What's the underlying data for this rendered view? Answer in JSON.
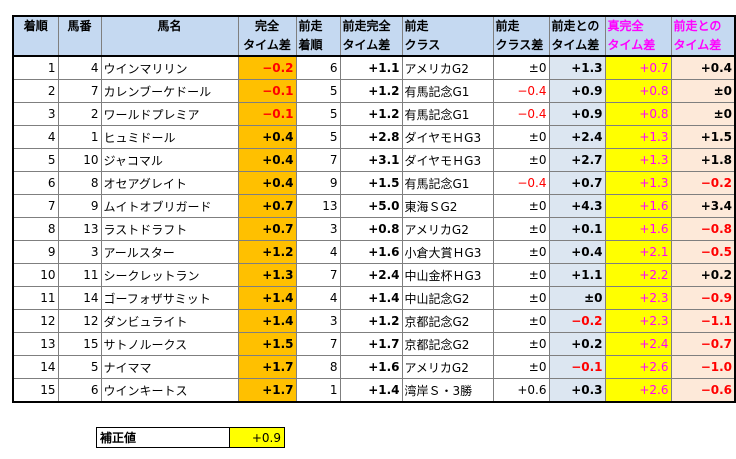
{
  "headers": {
    "rank": [
      "着順",
      ""
    ],
    "num": [
      "馬番",
      ""
    ],
    "name": [
      "馬名",
      ""
    ],
    "diff": [
      "完全",
      "タイム差"
    ],
    "prev_rank": [
      "前走",
      "着順"
    ],
    "prev_diff": [
      "前走完全",
      "タイム差"
    ],
    "prev_class": [
      "前走",
      "クラス"
    ],
    "class_diff": [
      "前走",
      "クラス差"
    ],
    "prev_time": [
      "前走との",
      "タイム差"
    ],
    "true_diff": [
      "真完全",
      "タイム差"
    ],
    "true_prev": [
      "前走との",
      "タイム差"
    ]
  },
  "rows": [
    {
      "rank": "1",
      "num": "4",
      "name": "ウインマリリン",
      "diff": "−0.2",
      "prev_rank": "6",
      "prev_diff": "+1.1",
      "prev_class": "アメリカG2",
      "class_diff": "±0",
      "prev_time": "+1.3",
      "true_diff": "+0.7",
      "true_prev": "+0.4"
    },
    {
      "rank": "2",
      "num": "7",
      "name": "カレンブーケドール",
      "diff": "−0.1",
      "prev_rank": "5",
      "prev_diff": "+1.2",
      "prev_class": "有馬記念G1",
      "class_diff": "−0.4",
      "prev_time": "+0.9",
      "true_diff": "+0.8",
      "true_prev": "±0"
    },
    {
      "rank": "3",
      "num": "2",
      "name": "ワールドプレミア",
      "diff": "−0.1",
      "prev_rank": "5",
      "prev_diff": "+1.2",
      "prev_class": "有馬記念G1",
      "class_diff": "−0.4",
      "prev_time": "+0.9",
      "true_diff": "+0.8",
      "true_prev": "±0"
    },
    {
      "rank": "4",
      "num": "1",
      "name": "ヒュミドール",
      "diff": "+0.4",
      "prev_rank": "5",
      "prev_diff": "+2.8",
      "prev_class": "ダイヤモＨG3",
      "class_diff": "±0",
      "prev_time": "+2.4",
      "true_diff": "+1.3",
      "true_prev": "+1.5"
    },
    {
      "rank": "5",
      "num": "10",
      "name": "ジャコマル",
      "diff": "+0.4",
      "prev_rank": "7",
      "prev_diff": "+3.1",
      "prev_class": "ダイヤモＨG3",
      "class_diff": "±0",
      "prev_time": "+2.7",
      "true_diff": "+1.3",
      "true_prev": "+1.8"
    },
    {
      "rank": "6",
      "num": "8",
      "name": "オセアグレイト",
      "diff": "+0.4",
      "prev_rank": "9",
      "prev_diff": "+1.5",
      "prev_class": "有馬記念G1",
      "class_diff": "−0.4",
      "prev_time": "+0.7",
      "true_diff": "+1.3",
      "true_prev": "−0.2"
    },
    {
      "rank": "7",
      "num": "9",
      "name": "ムイトオブリガード",
      "diff": "+0.7",
      "prev_rank": "13",
      "prev_diff": "+5.0",
      "prev_class": "東海ＳG2",
      "class_diff": "±0",
      "prev_time": "+4.3",
      "true_diff": "+1.6",
      "true_prev": "+3.4"
    },
    {
      "rank": "8",
      "num": "13",
      "name": "ラストドラフト",
      "diff": "+0.7",
      "prev_rank": "3",
      "prev_diff": "+0.8",
      "prev_class": "アメリカG2",
      "class_diff": "±0",
      "prev_time": "+0.1",
      "true_diff": "+1.6",
      "true_prev": "−0.8"
    },
    {
      "rank": "9",
      "num": "3",
      "name": "アールスター",
      "diff": "+1.2",
      "prev_rank": "4",
      "prev_diff": "+1.6",
      "prev_class": "小倉大賞ＨG3",
      "class_diff": "±0",
      "prev_time": "+0.4",
      "true_diff": "+2.1",
      "true_prev": "−0.5"
    },
    {
      "rank": "10",
      "num": "11",
      "name": "シークレットラン",
      "diff": "+1.3",
      "prev_rank": "7",
      "prev_diff": "+2.4",
      "prev_class": "中山金杯ＨG3",
      "class_diff": "±0",
      "prev_time": "+1.1",
      "true_diff": "+2.2",
      "true_prev": "+0.2"
    },
    {
      "rank": "11",
      "num": "14",
      "name": "ゴーフォザサミット",
      "diff": "+1.4",
      "prev_rank": "4",
      "prev_diff": "+1.4",
      "prev_class": "中山記念G2",
      "class_diff": "±0",
      "prev_time": "±0",
      "true_diff": "+2.3",
      "true_prev": "−0.9"
    },
    {
      "rank": "12",
      "num": "12",
      "name": "ダンビュライト",
      "diff": "+1.4",
      "prev_rank": "3",
      "prev_diff": "+1.2",
      "prev_class": "京都記念G2",
      "class_diff": "±0",
      "prev_time": "−0.2",
      "true_diff": "+2.3",
      "true_prev": "−1.1"
    },
    {
      "rank": "13",
      "num": "15",
      "name": "サトノルークス",
      "diff": "+1.5",
      "prev_rank": "7",
      "prev_diff": "+1.7",
      "prev_class": "京都記念G2",
      "class_diff": "±0",
      "prev_time": "+0.2",
      "true_diff": "+2.4",
      "true_prev": "−0.7"
    },
    {
      "rank": "14",
      "num": "5",
      "name": "ナイママ",
      "diff": "+1.7",
      "prev_rank": "8",
      "prev_diff": "+1.6",
      "prev_class": "アメリカG2",
      "class_diff": "±0",
      "prev_time": "−0.1",
      "true_diff": "+2.6",
      "true_prev": "−1.0"
    },
    {
      "rank": "15",
      "num": "6",
      "name": "ウインキートス",
      "diff": "+1.7",
      "prev_rank": "1",
      "prev_diff": "+1.4",
      "prev_class": "湾岸Ｓ・3勝",
      "class_diff": "+0.6",
      "prev_time": "+0.3",
      "true_diff": "+2.6",
      "true_prev": "−0.6"
    }
  ],
  "correction": {
    "label": "補正値",
    "value": "+0.9"
  },
  "colors": {
    "header_bg": "#c5d9f1",
    "orange": "#ffc000",
    "blue": "#dce6f1",
    "yellow": "#ffff00",
    "peach": "#fde9d9",
    "negative": "#ff0000",
    "pink_text": "#ff00ff"
  }
}
